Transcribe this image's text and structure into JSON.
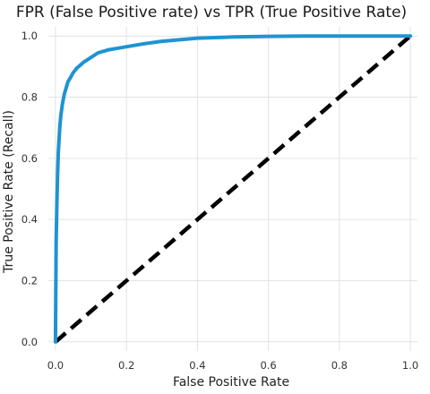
{
  "chart_data": {
    "type": "line",
    "title": "FPR (False Positive rate) vs TPR (True Positive Rate)",
    "xlabel": "False Positive Rate",
    "ylabel": "True Positive Rate (Recall)",
    "xlim": [
      -0.02,
      1.02
    ],
    "ylim": [
      -0.03,
      1.03
    ],
    "xticks": [
      "0.0",
      "0.2",
      "0.4",
      "0.6",
      "0.8",
      "1.0"
    ],
    "yticks": [
      "0.0",
      "0.2",
      "0.4",
      "0.6",
      "0.8",
      "1.0"
    ],
    "grid": true,
    "colors": {
      "roc_curve": "#1f93d1",
      "baseline": "#000000",
      "grid": "#e2e2e2",
      "plot_background": "#ffffff"
    },
    "series": [
      {
        "style": "solid",
        "x": [
          0.0,
          0.002,
          0.004,
          0.006,
          0.008,
          0.01,
          0.012,
          0.015,
          0.02,
          0.025,
          0.03,
          0.035,
          0.04,
          0.05,
          0.06,
          0.07,
          0.08,
          0.1,
          0.12,
          0.15,
          0.2,
          0.25,
          0.3,
          0.4,
          0.5,
          0.6,
          0.7,
          0.8,
          1.0
        ],
        "y": [
          0.0,
          0.33,
          0.45,
          0.55,
          0.62,
          0.66,
          0.7,
          0.74,
          0.78,
          0.81,
          0.83,
          0.85,
          0.86,
          0.88,
          0.895,
          0.905,
          0.915,
          0.93,
          0.945,
          0.955,
          0.965,
          0.975,
          0.983,
          0.993,
          0.997,
          0.999,
          1.0,
          1.0,
          1.0
        ]
      },
      {
        "style": "dashed",
        "x": [
          0.0,
          1.0
        ],
        "y": [
          0.0,
          1.0
        ]
      }
    ]
  }
}
